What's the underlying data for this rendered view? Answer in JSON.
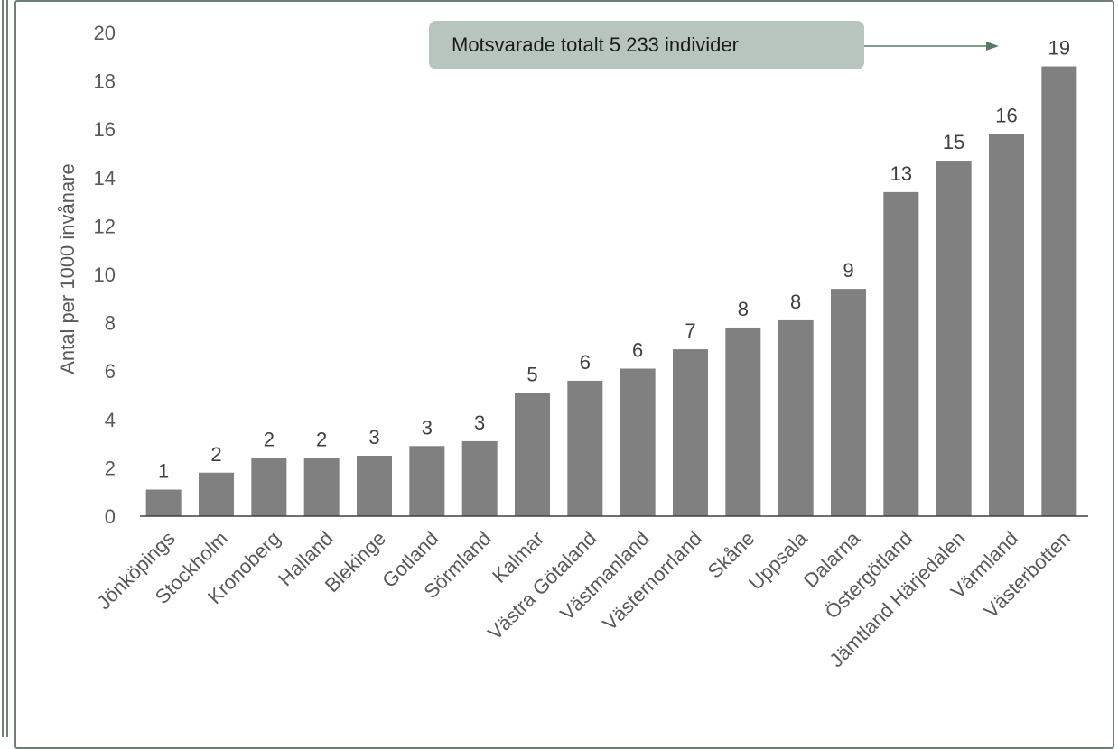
{
  "chart_data": {
    "type": "bar",
    "ylabel": "Antal per 1000 invånare",
    "ylim": [
      0,
      20
    ],
    "yticks": [
      0,
      2,
      4,
      6,
      8,
      10,
      12,
      14,
      16,
      18,
      20
    ],
    "grid": false,
    "bar_color": "#808080",
    "categories": [
      "Jönköpings",
      "Stockholm",
      "Kronoberg",
      "Halland",
      "Blekinge",
      "Gotland",
      "Sörmland",
      "Kalmar",
      "Västra Götaland",
      "Västmanland",
      "Västernorrland",
      "Skåne",
      "Uppsala",
      "Dalarna",
      "Östergötland",
      "Jämtland Härjedalen",
      "Värmland",
      "Västerbotten"
    ],
    "values": [
      1.1,
      1.8,
      2.4,
      2.4,
      2.5,
      2.9,
      3.1,
      5.1,
      5.6,
      6.1,
      6.9,
      7.8,
      8.1,
      9.4,
      13.4,
      14.7,
      15.8,
      18.6
    ],
    "data_labels": [
      "1",
      "2",
      "2",
      "2",
      "3",
      "3",
      "3",
      "5",
      "6",
      "6",
      "7",
      "8",
      "8",
      "9",
      "13",
      "15",
      "16",
      "19"
    ],
    "annotation": "Motsvarade totalt 5 233 individer"
  },
  "colors": {
    "frame": "#6f7f73",
    "callout_bg": "#b8c5bc",
    "arrow": "#5a7a65"
  }
}
